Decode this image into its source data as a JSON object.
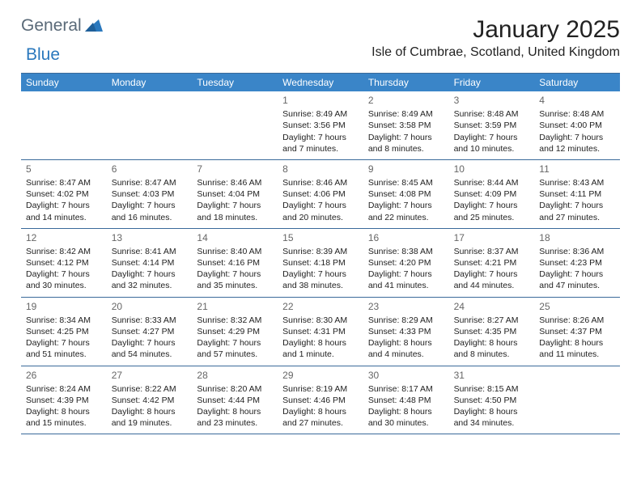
{
  "logo": {
    "text1": "General",
    "text2": "Blue",
    "tri_color": "#2a78bd"
  },
  "title": "January 2025",
  "location": "Isle of Cumbrae, Scotland, United Kingdom",
  "colors": {
    "header_bg": "#3a85c8",
    "header_text": "#ffffff",
    "rule": "#3a6a9a",
    "daynum": "#666666",
    "body_text": "#222222"
  },
  "day_headers": [
    "Sunday",
    "Monday",
    "Tuesday",
    "Wednesday",
    "Thursday",
    "Friday",
    "Saturday"
  ],
  "weeks": [
    [
      null,
      null,
      null,
      {
        "n": "1",
        "l1": "Sunrise: 8:49 AM",
        "l2": "Sunset: 3:56 PM",
        "l3": "Daylight: 7 hours",
        "l4": "and 7 minutes."
      },
      {
        "n": "2",
        "l1": "Sunrise: 8:49 AM",
        "l2": "Sunset: 3:58 PM",
        "l3": "Daylight: 7 hours",
        "l4": "and 8 minutes."
      },
      {
        "n": "3",
        "l1": "Sunrise: 8:48 AM",
        "l2": "Sunset: 3:59 PM",
        "l3": "Daylight: 7 hours",
        "l4": "and 10 minutes."
      },
      {
        "n": "4",
        "l1": "Sunrise: 8:48 AM",
        "l2": "Sunset: 4:00 PM",
        "l3": "Daylight: 7 hours",
        "l4": "and 12 minutes."
      }
    ],
    [
      {
        "n": "5",
        "l1": "Sunrise: 8:47 AM",
        "l2": "Sunset: 4:02 PM",
        "l3": "Daylight: 7 hours",
        "l4": "and 14 minutes."
      },
      {
        "n": "6",
        "l1": "Sunrise: 8:47 AM",
        "l2": "Sunset: 4:03 PM",
        "l3": "Daylight: 7 hours",
        "l4": "and 16 minutes."
      },
      {
        "n": "7",
        "l1": "Sunrise: 8:46 AM",
        "l2": "Sunset: 4:04 PM",
        "l3": "Daylight: 7 hours",
        "l4": "and 18 minutes."
      },
      {
        "n": "8",
        "l1": "Sunrise: 8:46 AM",
        "l2": "Sunset: 4:06 PM",
        "l3": "Daylight: 7 hours",
        "l4": "and 20 minutes."
      },
      {
        "n": "9",
        "l1": "Sunrise: 8:45 AM",
        "l2": "Sunset: 4:08 PM",
        "l3": "Daylight: 7 hours",
        "l4": "and 22 minutes."
      },
      {
        "n": "10",
        "l1": "Sunrise: 8:44 AM",
        "l2": "Sunset: 4:09 PM",
        "l3": "Daylight: 7 hours",
        "l4": "and 25 minutes."
      },
      {
        "n": "11",
        "l1": "Sunrise: 8:43 AM",
        "l2": "Sunset: 4:11 PM",
        "l3": "Daylight: 7 hours",
        "l4": "and 27 minutes."
      }
    ],
    [
      {
        "n": "12",
        "l1": "Sunrise: 8:42 AM",
        "l2": "Sunset: 4:12 PM",
        "l3": "Daylight: 7 hours",
        "l4": "and 30 minutes."
      },
      {
        "n": "13",
        "l1": "Sunrise: 8:41 AM",
        "l2": "Sunset: 4:14 PM",
        "l3": "Daylight: 7 hours",
        "l4": "and 32 minutes."
      },
      {
        "n": "14",
        "l1": "Sunrise: 8:40 AM",
        "l2": "Sunset: 4:16 PM",
        "l3": "Daylight: 7 hours",
        "l4": "and 35 minutes."
      },
      {
        "n": "15",
        "l1": "Sunrise: 8:39 AM",
        "l2": "Sunset: 4:18 PM",
        "l3": "Daylight: 7 hours",
        "l4": "and 38 minutes."
      },
      {
        "n": "16",
        "l1": "Sunrise: 8:38 AM",
        "l2": "Sunset: 4:20 PM",
        "l3": "Daylight: 7 hours",
        "l4": "and 41 minutes."
      },
      {
        "n": "17",
        "l1": "Sunrise: 8:37 AM",
        "l2": "Sunset: 4:21 PM",
        "l3": "Daylight: 7 hours",
        "l4": "and 44 minutes."
      },
      {
        "n": "18",
        "l1": "Sunrise: 8:36 AM",
        "l2": "Sunset: 4:23 PM",
        "l3": "Daylight: 7 hours",
        "l4": "and 47 minutes."
      }
    ],
    [
      {
        "n": "19",
        "l1": "Sunrise: 8:34 AM",
        "l2": "Sunset: 4:25 PM",
        "l3": "Daylight: 7 hours",
        "l4": "and 51 minutes."
      },
      {
        "n": "20",
        "l1": "Sunrise: 8:33 AM",
        "l2": "Sunset: 4:27 PM",
        "l3": "Daylight: 7 hours",
        "l4": "and 54 minutes."
      },
      {
        "n": "21",
        "l1": "Sunrise: 8:32 AM",
        "l2": "Sunset: 4:29 PM",
        "l3": "Daylight: 7 hours",
        "l4": "and 57 minutes."
      },
      {
        "n": "22",
        "l1": "Sunrise: 8:30 AM",
        "l2": "Sunset: 4:31 PM",
        "l3": "Daylight: 8 hours",
        "l4": "and 1 minute."
      },
      {
        "n": "23",
        "l1": "Sunrise: 8:29 AM",
        "l2": "Sunset: 4:33 PM",
        "l3": "Daylight: 8 hours",
        "l4": "and 4 minutes."
      },
      {
        "n": "24",
        "l1": "Sunrise: 8:27 AM",
        "l2": "Sunset: 4:35 PM",
        "l3": "Daylight: 8 hours",
        "l4": "and 8 minutes."
      },
      {
        "n": "25",
        "l1": "Sunrise: 8:26 AM",
        "l2": "Sunset: 4:37 PM",
        "l3": "Daylight: 8 hours",
        "l4": "and 11 minutes."
      }
    ],
    [
      {
        "n": "26",
        "l1": "Sunrise: 8:24 AM",
        "l2": "Sunset: 4:39 PM",
        "l3": "Daylight: 8 hours",
        "l4": "and 15 minutes."
      },
      {
        "n": "27",
        "l1": "Sunrise: 8:22 AM",
        "l2": "Sunset: 4:42 PM",
        "l3": "Daylight: 8 hours",
        "l4": "and 19 minutes."
      },
      {
        "n": "28",
        "l1": "Sunrise: 8:20 AM",
        "l2": "Sunset: 4:44 PM",
        "l3": "Daylight: 8 hours",
        "l4": "and 23 minutes."
      },
      {
        "n": "29",
        "l1": "Sunrise: 8:19 AM",
        "l2": "Sunset: 4:46 PM",
        "l3": "Daylight: 8 hours",
        "l4": "and 27 minutes."
      },
      {
        "n": "30",
        "l1": "Sunrise: 8:17 AM",
        "l2": "Sunset: 4:48 PM",
        "l3": "Daylight: 8 hours",
        "l4": "and 30 minutes."
      },
      {
        "n": "31",
        "l1": "Sunrise: 8:15 AM",
        "l2": "Sunset: 4:50 PM",
        "l3": "Daylight: 8 hours",
        "l4": "and 34 minutes."
      },
      null
    ]
  ]
}
